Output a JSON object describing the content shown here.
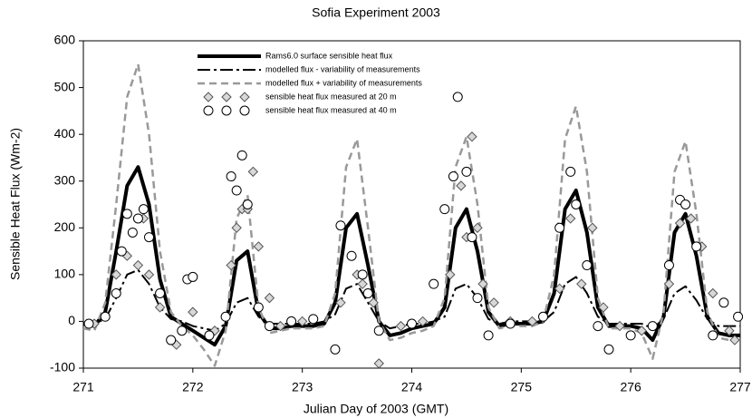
{
  "chart_data": {
    "type": "line",
    "title": "Sofia Experiment 2003",
    "x_label": "Julian Day of 2003 (GMT)",
    "y_label": "Sensible Heat Flux (Wm-2)",
    "xlim": [
      271,
      277
    ],
    "xticks": [
      271,
      272,
      273,
      274,
      275,
      276,
      277
    ],
    "ylim": [
      -100,
      600
    ],
    "yticks": [
      -100,
      0,
      100,
      200,
      300,
      400,
      500,
      600
    ],
    "grid": false,
    "legend": "upper-left",
    "series": [
      {
        "name": "Rams6.0 surface sensible heat flux",
        "kind": "line",
        "style": "solid",
        "color": "#000000",
        "width": 4,
        "x": [
          271.0,
          271.1,
          271.2,
          271.3,
          271.4,
          271.5,
          271.6,
          271.7,
          271.8,
          271.9,
          272.0,
          272.1,
          272.2,
          272.3,
          272.4,
          272.5,
          272.6,
          272.7,
          272.8,
          272.9,
          273.0,
          273.1,
          273.2,
          273.3,
          273.4,
          273.5,
          273.6,
          273.7,
          273.8,
          273.9,
          274.0,
          274.1,
          274.2,
          274.3,
          274.4,
          274.5,
          274.6,
          274.7,
          274.8,
          274.9,
          275.0,
          275.1,
          275.2,
          275.3,
          275.4,
          275.5,
          275.6,
          275.7,
          275.8,
          275.9,
          276.0,
          276.1,
          276.2,
          276.3,
          276.4,
          276.5,
          276.6,
          276.7,
          276.8,
          276.9,
          277.0
        ],
        "values": [
          -5,
          -10,
          20,
          150,
          290,
          330,
          250,
          90,
          10,
          -5,
          -20,
          -35,
          -50,
          -10,
          130,
          150,
          20,
          -15,
          -15,
          -10,
          -10,
          -10,
          -5,
          40,
          200,
          230,
          120,
          0,
          -30,
          -25,
          -15,
          -10,
          -5,
          30,
          200,
          240,
          150,
          20,
          -10,
          -5,
          -5,
          -5,
          0,
          60,
          240,
          280,
          190,
          30,
          -10,
          -10,
          -10,
          -15,
          -40,
          10,
          190,
          230,
          140,
          10,
          -25,
          -30,
          -30
        ]
      },
      {
        "name": "modelled flux - variability of measurements",
        "kind": "line",
        "style": "dash-dot",
        "color": "#000000",
        "width": 2,
        "x": [
          271.0,
          271.1,
          271.2,
          271.3,
          271.4,
          271.5,
          271.6,
          271.7,
          271.8,
          271.9,
          272.0,
          272.1,
          272.2,
          272.3,
          272.4,
          272.5,
          272.6,
          272.7,
          272.8,
          272.9,
          273.0,
          273.1,
          273.2,
          273.3,
          273.4,
          273.5,
          273.6,
          273.7,
          273.8,
          273.9,
          274.0,
          274.1,
          274.2,
          274.3,
          274.4,
          274.5,
          274.6,
          274.7,
          274.8,
          274.9,
          275.0,
          275.1,
          275.2,
          275.3,
          275.4,
          275.5,
          275.6,
          275.7,
          275.8,
          275.9,
          276.0,
          276.1,
          276.2,
          276.3,
          276.4,
          276.5,
          276.6,
          276.7,
          276.8,
          276.9,
          277.0
        ],
        "values": [
          -5,
          -5,
          5,
          50,
          100,
          110,
          80,
          30,
          5,
          0,
          -10,
          -15,
          -20,
          -5,
          40,
          50,
          10,
          -5,
          -5,
          -5,
          -5,
          -5,
          0,
          15,
          70,
          80,
          40,
          0,
          -15,
          -10,
          -5,
          -5,
          0,
          10,
          70,
          80,
          50,
          5,
          -5,
          0,
          0,
          0,
          0,
          20,
          80,
          95,
          60,
          10,
          -5,
          -5,
          -5,
          -5,
          -15,
          5,
          60,
          75,
          45,
          5,
          -10,
          -10,
          -10
        ]
      },
      {
        "name": "modelled flux + variability of measurements",
        "kind": "line",
        "style": "dash",
        "color": "#999999",
        "width": 2.5,
        "x": [
          271.0,
          271.1,
          271.2,
          271.3,
          271.4,
          271.5,
          271.6,
          271.7,
          271.8,
          271.9,
          272.0,
          272.1,
          272.2,
          272.3,
          272.4,
          272.5,
          272.6,
          272.7,
          272.8,
          272.9,
          273.0,
          273.1,
          273.2,
          273.3,
          273.4,
          273.5,
          273.6,
          273.7,
          273.8,
          273.9,
          274.0,
          274.1,
          274.2,
          274.3,
          274.4,
          274.5,
          274.6,
          274.7,
          274.8,
          274.9,
          275.0,
          275.1,
          275.2,
          275.3,
          275.4,
          275.5,
          275.6,
          275.7,
          275.8,
          275.9,
          276.0,
          276.1,
          276.2,
          276.3,
          276.4,
          276.5,
          276.6,
          276.7,
          276.8,
          276.9,
          277.0
        ],
        "values": [
          -15,
          -20,
          40,
          250,
          480,
          550,
          400,
          150,
          20,
          -10,
          -30,
          -60,
          -95,
          -20,
          220,
          270,
          30,
          -25,
          -20,
          -15,
          -15,
          -15,
          -10,
          60,
          330,
          390,
          200,
          0,
          -40,
          -35,
          -25,
          -20,
          -10,
          50,
          330,
          395,
          250,
          30,
          -15,
          -10,
          -10,
          -10,
          0,
          100,
          390,
          460,
          320,
          50,
          -15,
          -15,
          -15,
          -25,
          -80,
          20,
          320,
          385,
          230,
          20,
          -35,
          -40,
          -40
        ]
      },
      {
        "name": "sensible heat flux measured at 20 m",
        "kind": "scatter",
        "marker": "diamond",
        "color": "#d8d8d8",
        "x": [
          271.1,
          271.3,
          271.4,
          271.5,
          271.55,
          271.6,
          271.7,
          271.85,
          272.0,
          272.2,
          272.35,
          272.4,
          272.45,
          272.5,
          272.55,
          272.6,
          272.7,
          272.8,
          273.0,
          273.35,
          273.45,
          273.5,
          273.55,
          273.65,
          273.7,
          273.9,
          274.1,
          274.35,
          274.45,
          274.5,
          274.55,
          274.6,
          274.65,
          274.75,
          274.9,
          275.1,
          275.35,
          275.45,
          275.55,
          275.65,
          275.75,
          275.9,
          276.1,
          276.35,
          276.45,
          276.55,
          276.65,
          276.75,
          276.9,
          276.95
        ],
        "values": [
          -5,
          100,
          140,
          120,
          220,
          100,
          30,
          -50,
          20,
          -20,
          120,
          200,
          240,
          240,
          320,
          160,
          50,
          -10,
          0,
          40,
          140,
          100,
          80,
          40,
          -90,
          -10,
          0,
          100,
          290,
          180,
          395,
          200,
          80,
          40,
          0,
          0,
          70,
          220,
          80,
          200,
          30,
          -10,
          -20,
          80,
          210,
          220,
          160,
          60,
          -20,
          -40
        ]
      },
      {
        "name": "sensible heat flux measured at 40 m",
        "kind": "scatter",
        "marker": "circle",
        "color": "#ffffff",
        "x": [
          271.05,
          271.2,
          271.3,
          271.35,
          271.4,
          271.45,
          271.5,
          271.55,
          271.6,
          271.7,
          271.8,
          271.9,
          271.95,
          272.0,
          272.15,
          272.3,
          272.35,
          272.4,
          272.45,
          272.5,
          272.6,
          272.7,
          272.9,
          273.1,
          273.3,
          273.35,
          273.45,
          273.55,
          273.6,
          273.7,
          274.0,
          274.2,
          274.3,
          274.38,
          274.42,
          274.5,
          274.55,
          274.6,
          274.7,
          274.9,
          275.2,
          275.35,
          275.45,
          275.5,
          275.6,
          275.7,
          275.8,
          276.0,
          276.2,
          276.35,
          276.45,
          276.5,
          276.6,
          276.75,
          276.85,
          276.98
        ],
        "values": [
          -5,
          10,
          60,
          150,
          230,
          190,
          220,
          240,
          180,
          60,
          -40,
          -20,
          90,
          95,
          -30,
          10,
          310,
          280,
          355,
          250,
          30,
          -10,
          0,
          5,
          -60,
          205,
          140,
          100,
          60,
          -20,
          -5,
          80,
          240,
          310,
          480,
          320,
          180,
          50,
          -30,
          -5,
          10,
          200,
          320,
          250,
          120,
          -10,
          -60,
          -30,
          -10,
          120,
          260,
          250,
          160,
          -30,
          40,
          10
        ]
      }
    ]
  }
}
